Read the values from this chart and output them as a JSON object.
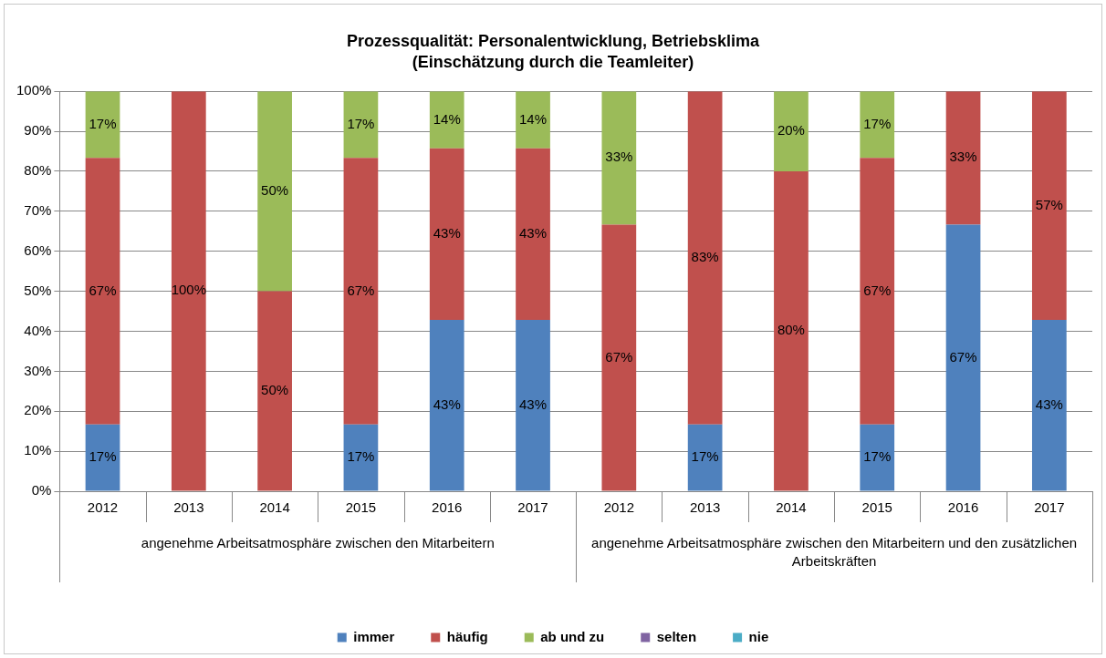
{
  "chart_data": {
    "type": "bar",
    "title": "Prozessqualität: Personalentwicklung, Betriebsklima",
    "subtitle": "(Einschätzung durch die Teamleiter)",
    "categories": [
      "2012",
      "2013",
      "2014",
      "2015",
      "2016",
      "2017",
      "2012",
      "2013",
      "2014",
      "2015",
      "2016",
      "2017"
    ],
    "annotations": [
      "angenehme Arbeitsatmosphäre zwischen den Mitarbeitern",
      "angenehme Arbeitsatmosphäre zwischen den Mitarbeitern und den zusätzlichen Arbeitskräften"
    ],
    "stacked": true,
    "grid": "y",
    "legend": "bottom",
    "ylim": [
      0,
      100
    ],
    "yticks": [
      {
        "value": 0,
        "label": "0%"
      },
      {
        "value": 10,
        "label": "10%"
      },
      {
        "value": 20,
        "label": "20%"
      },
      {
        "value": 30,
        "label": "30%"
      },
      {
        "value": 40,
        "label": "40%"
      },
      {
        "value": 50,
        "label": "50%"
      },
      {
        "value": 60,
        "label": "60%"
      },
      {
        "value": 70,
        "label": "70%"
      },
      {
        "value": 80,
        "label": "80%"
      },
      {
        "value": 90,
        "label": "90%"
      },
      {
        "value": 100,
        "label": "100%"
      }
    ],
    "series": [
      {
        "name": "immer",
        "color": "#4f81bd",
        "values": [
          16.67,
          null,
          null,
          16.67,
          42.86,
          42.86,
          null,
          16.67,
          null,
          16.67,
          66.67,
          42.86
        ],
        "value_labels": [
          "17%",
          null,
          null,
          "17%",
          "43%",
          "43%",
          null,
          "17%",
          null,
          "17%",
          "67%",
          "43%"
        ]
      },
      {
        "name": "häufig",
        "color": "#c0504d",
        "values": [
          66.66,
          100,
          50,
          66.66,
          42.86,
          42.86,
          66.67,
          83.33,
          80,
          66.66,
          33.33,
          57.14
        ],
        "value_labels": [
          "67%",
          "100%",
          "50%",
          "67%",
          "43%",
          "43%",
          "67%",
          "83%",
          "80%",
          "67%",
          "33%",
          "57%"
        ]
      },
      {
        "name": "ab und zu",
        "color": "#9bbb59",
        "values": [
          16.67,
          null,
          50,
          16.67,
          14.28,
          14.28,
          33.33,
          null,
          20,
          16.67,
          null,
          null
        ],
        "value_labels": [
          "17%",
          null,
          "50%",
          "17%",
          "14%",
          "14%",
          "33%",
          null,
          "20%",
          "17%",
          null,
          null
        ]
      },
      {
        "name": "selten",
        "color": "#8064a2",
        "values": [
          null,
          null,
          null,
          null,
          null,
          null,
          null,
          null,
          null,
          null,
          null,
          null
        ]
      },
      {
        "name": "nie",
        "color": "#4bacc6",
        "values": [
          null,
          null,
          null,
          null,
          null,
          null,
          null,
          null,
          null,
          null,
          null,
          null
        ]
      }
    ]
  }
}
